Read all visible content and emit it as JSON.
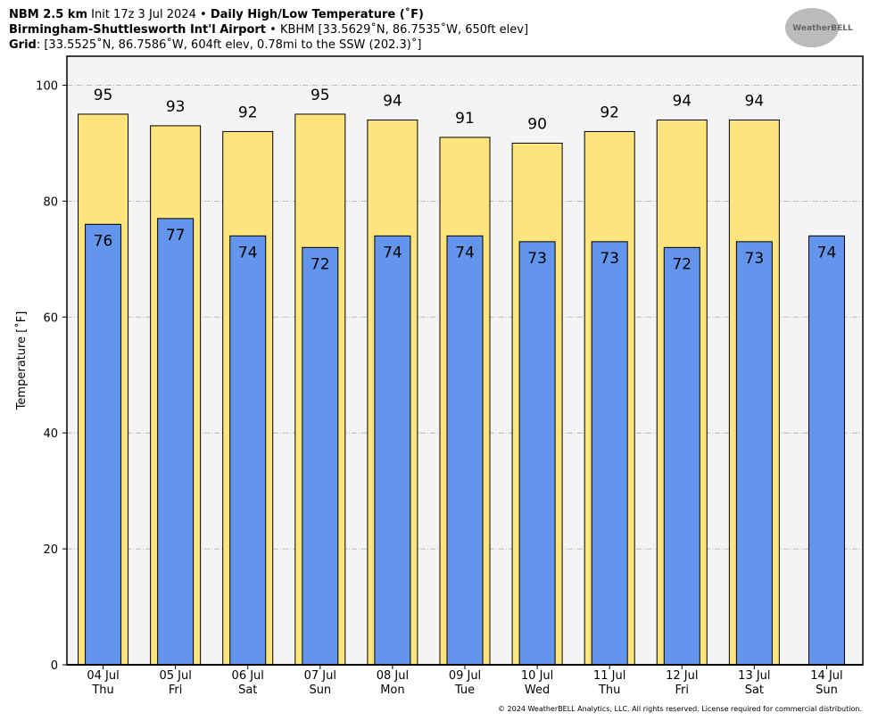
{
  "chart_data": {
    "type": "bar",
    "title_parts": [
      "NBM 2.5 km",
      "Init 17z 3 Jul 2024",
      "•",
      "Daily High/Low Temperature (˚F)"
    ],
    "subtitle_parts": [
      "Birmingham-Shuttlesworth Int'l Airport",
      "•",
      "KBHM [33.5629˚N, 86.7535˚W, 650ft elev]"
    ],
    "grid_parts": [
      "Grid",
      ": [33.5525˚N, 86.7586˚W, 604ft elev, 0.78mi to the SSW (202.3)˚]"
    ],
    "logo": "WeatherBELL",
    "ylabel": "Temperature [˚F]",
    "categories": [
      "04 Jul",
      "05 Jul",
      "06 Jul",
      "07 Jul",
      "08 Jul",
      "09 Jul",
      "10 Jul",
      "11 Jul",
      "12 Jul",
      "13 Jul",
      "14 Jul"
    ],
    "days": [
      "Thu",
      "Fri",
      "Sat",
      "Sun",
      "Mon",
      "Tue",
      "Wed",
      "Thu",
      "Fri",
      "Sat",
      "Sun"
    ],
    "series": [
      {
        "name": "High",
        "color": "#fee47c",
        "values": [
          95,
          93,
          92,
          95,
          94,
          91,
          90,
          92,
          94,
          94,
          null
        ]
      },
      {
        "name": "Low",
        "color": "#6495ed",
        "values": [
          76,
          77,
          74,
          72,
          74,
          74,
          73,
          73,
          72,
          73,
          74
        ]
      }
    ],
    "ylim": [
      0,
      105
    ],
    "yticks": [
      0,
      20,
      40,
      60,
      80,
      100
    ],
    "grid": true,
    "footer": "© 2024 WeatherBELL Analytics, LLC. All rights reserved. License required for commercial distribution."
  }
}
